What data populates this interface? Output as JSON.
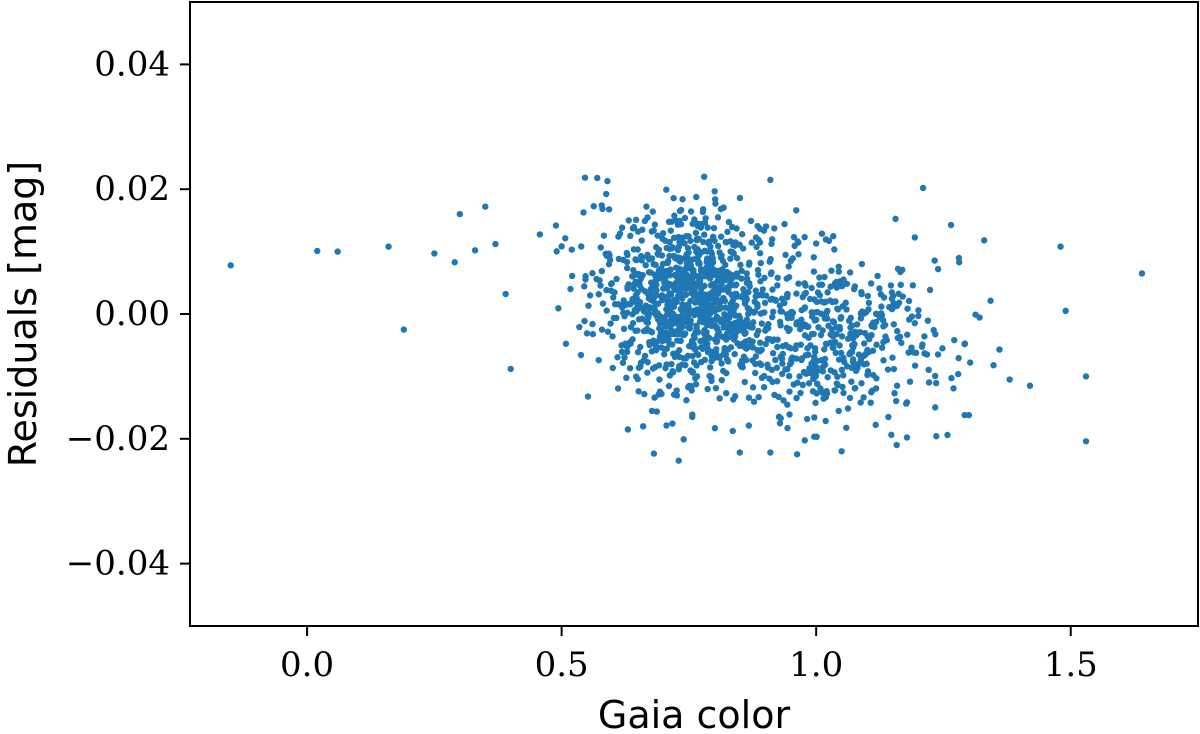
{
  "chart_data": {
    "type": "scatter",
    "title": "",
    "xlabel": "Gaia color",
    "ylabel": "Residuals [mag]",
    "xlim": [
      -0.23,
      1.75
    ],
    "ylim": [
      -0.05,
      0.05
    ],
    "xticks": [
      0.0,
      0.5,
      1.0,
      1.5
    ],
    "xtick_labels": [
      "0.0",
      "0.5",
      "1.0",
      "1.5"
    ],
    "yticks": [
      0.04,
      0.02,
      0.0,
      -0.02,
      -0.04
    ],
    "ytick_labels": [
      "0.04",
      "0.02",
      "0.00",
      "−0.02",
      "−0.04"
    ],
    "grid": false,
    "marker_color": "#1f77b4",
    "outliers": [
      [
        -0.15,
        0.0078
      ],
      [
        0.02,
        0.0101
      ],
      [
        0.06,
        0.01
      ],
      [
        0.16,
        0.0108
      ],
      [
        0.19,
        -0.0025
      ],
      [
        0.25,
        0.0097
      ],
      [
        0.29,
        0.0083
      ],
      [
        0.3,
        0.016
      ],
      [
        0.33,
        0.0102
      ],
      [
        0.35,
        0.0172
      ],
      [
        0.37,
        0.0112
      ],
      [
        0.39,
        0.0032
      ],
      [
        0.4,
        -0.0088
      ],
      [
        1.48,
        0.0108
      ],
      [
        1.49,
        0.0005
      ],
      [
        1.53,
        -0.01
      ],
      [
        1.53,
        -0.0204
      ],
      [
        1.64,
        0.0065
      ]
    ],
    "cluster_points": [
      [
        0.57,
        0.0218
      ],
      [
        0.59,
        0.0213
      ],
      [
        0.78,
        0.022
      ],
      [
        0.91,
        0.0215
      ],
      [
        0.73,
        -0.0235
      ],
      [
        0.85,
        -0.0222
      ],
      [
        0.91,
        -0.0222
      ],
      [
        1.05,
        -0.022
      ],
      [
        1.21,
        0.0202
      ],
      [
        1.33,
        0.0118
      ],
      [
        1.3,
        -0.0162
      ],
      [
        1.36,
        -0.0057
      ],
      [
        1.38,
        -0.0105
      ],
      [
        1.42,
        -0.0115
      ],
      [
        0.63,
        -0.0185
      ],
      [
        0.66,
        -0.018
      ]
    ],
    "dense_region": {
      "note_count": 1500,
      "seed": 7,
      "blobs": [
        {
          "cx": 0.76,
          "cy": 0.002,
          "sx": 0.075,
          "sy": 0.007,
          "n": 900
        },
        {
          "cx": 1.02,
          "cy": -0.004,
          "sx": 0.12,
          "sy": 0.0075,
          "n": 520
        },
        {
          "cx": 0.6,
          "cy": 0.005,
          "sx": 0.06,
          "sy": 0.0065,
          "n": 80
        }
      ],
      "xrange": [
        0.43,
        1.36
      ],
      "yrange": [
        -0.023,
        0.022
      ]
    }
  }
}
